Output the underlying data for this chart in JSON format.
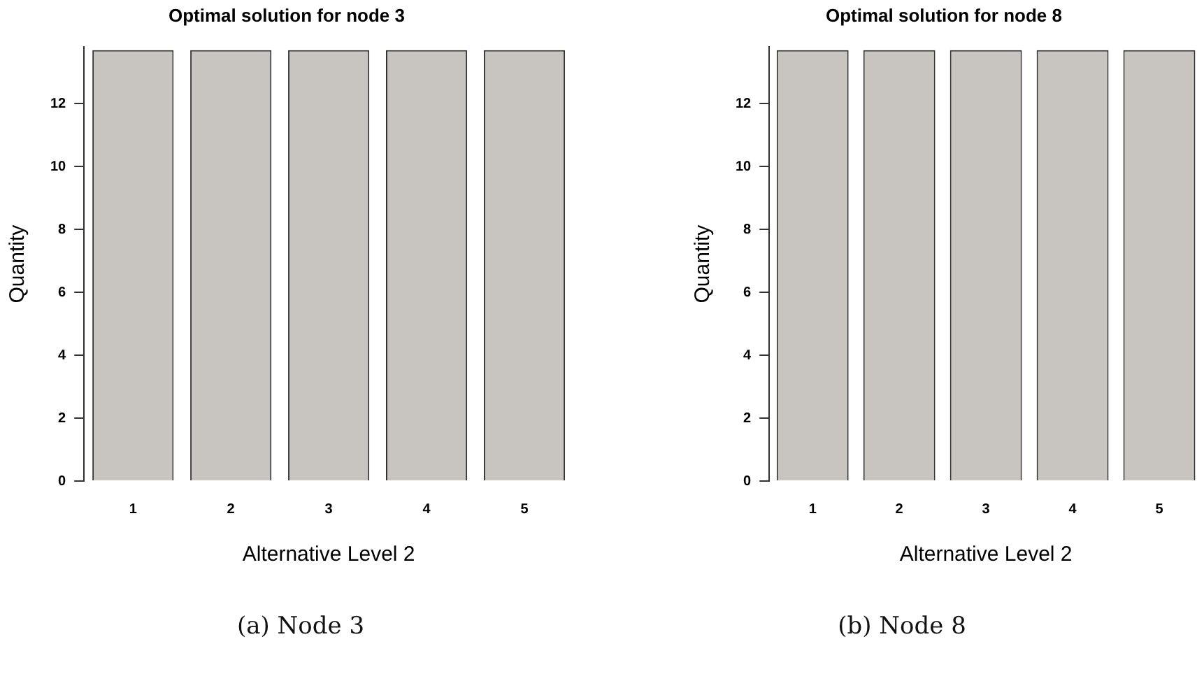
{
  "chart_data": [
    {
      "type": "bar",
      "title": "Optimal solution for node 3",
      "xlabel": "Alternative Level 2",
      "ylabel": "Quantity",
      "categories": [
        "1",
        "2",
        "3",
        "4",
        "5"
      ],
      "values": [
        13.7,
        13.7,
        13.7,
        13.7,
        13.7
      ],
      "color": "#c8c5c0",
      "ylim": [
        0,
        13.8
      ],
      "yticks": [
        0,
        2,
        4,
        6,
        8,
        10,
        12
      ],
      "grid": false,
      "legend": false,
      "annotations": [
        "(a) Node 3"
      ]
    },
    {
      "type": "bar",
      "title": "Optimal solution for node 8",
      "xlabel": "Alternative Level 2",
      "ylabel": "Quantity",
      "categories": [
        "1",
        "2",
        "3",
        "4",
        "5"
      ],
      "values": [
        13.7,
        13.7,
        13.7,
        13.7,
        13.7
      ],
      "color": "#c8c5c0",
      "ylim": [
        0,
        13.8
      ],
      "yticks": [
        0,
        2,
        4,
        6,
        8,
        10,
        12
      ],
      "grid": false,
      "legend": false,
      "annotations": [
        "(b) Node 8"
      ]
    }
  ]
}
